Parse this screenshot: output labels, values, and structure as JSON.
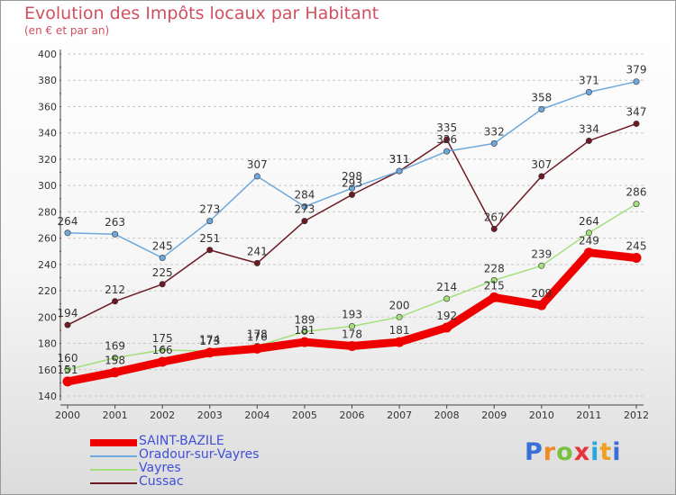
{
  "header": {
    "title": "Evolution des Impôts locaux par Habitant",
    "subtitle": "(en € et par an)"
  },
  "chart_data": {
    "type": "line",
    "title": "Evolution des Impôts locaux par Habitant",
    "subtitle": "(en € et par an)",
    "xlabel": "",
    "ylabel": "",
    "x": [
      "2000",
      "2001",
      "2002",
      "2003",
      "2004",
      "2005",
      "2006",
      "2007",
      "2008",
      "2009",
      "2010",
      "2011",
      "2012"
    ],
    "ylim": [
      140,
      400
    ],
    "yticks": [
      140,
      160,
      180,
      200,
      220,
      240,
      260,
      280,
      300,
      320,
      340,
      360,
      380,
      400
    ],
    "grid": "horizontal dashed",
    "legend_position": "bottom-left",
    "series": [
      {
        "name": "SAINT-BAZILE",
        "color": "#ee0000",
        "width": 9,
        "values": [
          151,
          158,
          166,
          173,
          176,
          181,
          178,
          181,
          192,
          215,
          209,
          249,
          245
        ]
      },
      {
        "name": "Oradour-sur-Vayres",
        "color": "#6fa8dc",
        "width": 1.5,
        "values": [
          264,
          263,
          245,
          273,
          307,
          284,
          298,
          311,
          326,
          332,
          358,
          371,
          379
        ]
      },
      {
        "name": "Vayres",
        "color": "#a3e07c",
        "width": 1.5,
        "values": [
          160,
          169,
          175,
          174,
          178,
          189,
          193,
          200,
          214,
          228,
          239,
          264,
          286
        ]
      },
      {
        "name": "Cussac",
        "color": "#6e1a24",
        "width": 1.5,
        "values": [
          194,
          212,
          225,
          251,
          241,
          273,
          293,
          311,
          335,
          267,
          307,
          334,
          347
        ]
      }
    ]
  },
  "legend": {
    "items": [
      {
        "label": "SAINT-BAZILE",
        "color": "#ee0000"
      },
      {
        "label": "Oradour-sur-Vayres",
        "color": "#6fa8dc"
      },
      {
        "label": "Vayres",
        "color": "#a3e07c"
      },
      {
        "label": "Cussac",
        "color": "#6e1a24"
      }
    ]
  },
  "logo": {
    "text": "Proxiti",
    "colors": [
      "#3a6fd8",
      "#f08a24",
      "#7ac143",
      "#e6353a",
      "#2aa6d8",
      "#f0a020",
      "#3a6fd8"
    ]
  }
}
